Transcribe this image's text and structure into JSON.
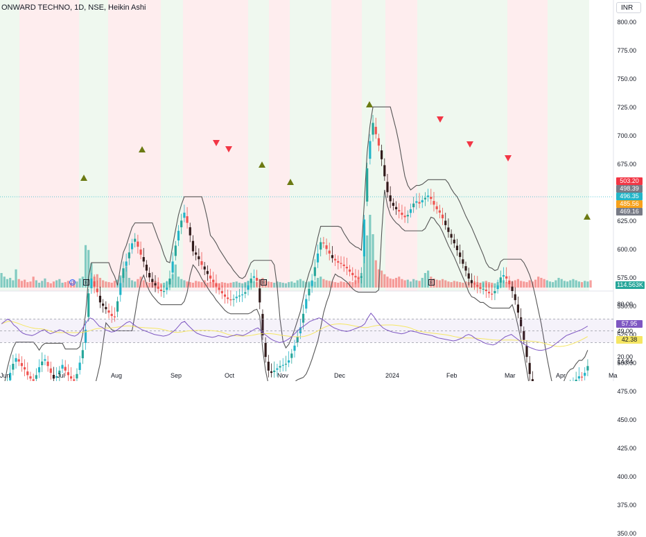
{
  "header": {
    "title": "ONWARD TECHNO, 1D, NSE, Heikin Ashi",
    "currency": "INR"
  },
  "axes": {
    "price_ticks": [
      "800.00",
      "775.00",
      "750.00",
      "725.00",
      "700.00",
      "675.00",
      "650.00",
      "625.00",
      "600.00",
      "575.00",
      "550.00",
      "525.00",
      "500.00",
      "475.00",
      "450.00",
      "425.00",
      "400.00",
      "375.00",
      "350.00"
    ],
    "rsi_ticks": [
      "80.00",
      "49.00",
      "20.00",
      "14.84"
    ],
    "month_labels": [
      "Jun",
      "Jul",
      "Aug",
      "Sep",
      "Oct",
      "Nov",
      "Dec",
      "2024",
      "Feb",
      "Mar",
      "Apr",
      "Ma"
    ]
  },
  "badges": {
    "price_a": "503.20",
    "price_b": "498.39",
    "price_c": "496.35",
    "price_d": "485.56",
    "price_e": "469.16",
    "volume": "114.563K",
    "rsi_a": "57.95",
    "rsi_b": "42.38"
  },
  "events": {
    "dividend": "D",
    "earnings": "E"
  },
  "colors": {
    "up": "#26a69a",
    "down": "#ef5350",
    "dark": "#311b1b",
    "cyan": "#22b5c8",
    "band": "#555555",
    "rsi": "#7e57c2",
    "rsi_ma": "#f5e663",
    "green_bg": "rgba(76,175,80,0.09)",
    "red_bg": "rgba(242,54,69,0.09)"
  },
  "chart_data": {
    "type": "candlestick",
    "ylim": [
      345,
      812
    ],
    "closes": [
      455,
      468,
      482,
      492,
      500,
      505,
      502,
      498,
      495,
      490,
      487,
      485,
      490,
      497,
      502,
      504,
      498,
      492,
      487,
      489,
      494,
      499,
      494,
      490,
      487,
      485,
      491,
      501,
      512,
      530,
      562,
      575,
      568,
      563,
      554,
      551,
      548,
      545,
      542,
      541,
      555,
      571,
      584,
      590,
      598,
      606,
      610,
      603,
      596,
      590,
      582,
      576,
      572,
      569,
      566,
      564,
      564,
      567,
      575,
      590,
      604,
      617,
      626,
      633,
      624,
      613,
      599,
      596,
      592,
      587,
      583,
      579,
      575,
      572,
      568,
      565,
      562,
      559,
      557,
      556,
      557,
      559,
      560,
      561,
      563,
      569,
      575,
      577,
      573,
      554,
      525,
      506,
      494,
      492,
      494,
      496,
      498,
      499,
      500,
      503,
      509,
      516,
      524,
      532,
      544,
      557,
      566,
      573,
      585,
      597,
      607,
      606,
      601,
      597,
      593,
      591,
      589,
      588,
      586,
      584,
      581,
      578,
      576,
      575,
      577,
      627,
      672,
      696,
      712,
      702,
      692,
      680,
      665,
      651,
      643,
      639,
      636,
      634,
      631,
      629,
      631,
      636,
      641,
      643,
      641,
      644,
      646,
      648,
      645,
      640,
      636,
      633,
      628,
      622,
      616,
      611,
      606,
      600,
      594,
      588,
      582,
      575,
      571,
      570,
      568,
      566,
      566,
      564,
      562,
      561,
      564,
      569,
      576,
      578,
      575,
      570,
      564,
      556,
      545,
      533,
      521,
      506,
      491,
      478,
      466,
      454,
      447,
      445,
      446,
      448,
      449,
      450,
      457,
      465,
      472,
      478,
      481,
      482,
      486,
      489,
      488,
      492,
      498
    ],
    "volume": [
      24,
      18,
      14,
      16,
      12,
      30,
      14,
      11,
      13,
      9,
      10,
      18,
      12,
      8,
      11,
      15,
      9,
      7,
      10,
      12,
      14,
      8,
      9,
      11,
      8,
      12,
      10,
      15,
      18,
      70,
      62,
      40,
      18,
      22,
      16,
      12,
      10,
      9,
      8,
      11,
      13,
      20,
      24,
      35,
      16,
      12,
      10,
      14,
      18,
      12,
      9,
      8,
      10,
      11,
      9,
      7,
      8,
      10,
      12,
      22,
      38,
      18,
      14,
      12,
      10,
      9,
      8,
      11,
      10,
      9,
      12,
      8,
      9,
      10,
      8,
      7,
      9,
      8,
      7,
      8,
      9,
      10,
      8,
      7,
      9,
      11,
      12,
      10,
      9,
      14,
      16,
      12,
      10,
      9,
      8,
      10,
      9,
      8,
      7,
      9,
      10,
      8,
      12,
      14,
      11,
      9,
      10,
      12,
      10,
      16,
      18,
      14,
      12,
      11,
      10,
      9,
      8,
      10,
      9,
      8,
      10,
      9,
      12,
      18,
      24,
      100,
      86,
      120,
      88,
      45,
      30,
      28,
      22,
      18,
      15,
      14,
      16,
      18,
      14,
      12,
      13,
      10,
      14,
      12,
      11,
      16,
      24,
      28,
      18,
      15,
      13,
      12,
      14,
      12,
      10,
      9,
      11,
      10,
      9,
      8,
      10,
      9,
      12,
      10,
      9,
      8,
      10,
      11,
      9,
      8,
      7,
      9,
      10,
      12,
      9,
      8,
      10,
      12,
      14,
      11,
      10,
      9,
      12,
      10,
      13,
      18,
      16,
      14,
      12,
      10,
      9,
      12,
      16,
      14,
      11,
      10,
      12,
      14,
      12,
      10,
      9,
      11,
      10,
      12
    ],
    "rsi": [
      62,
      66,
      70,
      67,
      60,
      56,
      50,
      46,
      44,
      43,
      42,
      44,
      47,
      50,
      52,
      48,
      45,
      47,
      49,
      52,
      50,
      47,
      44,
      42,
      41,
      44,
      50,
      58,
      66,
      72,
      70,
      64,
      58,
      56,
      52,
      50,
      48,
      49,
      52,
      56,
      60,
      64,
      66,
      62,
      58,
      55,
      52,
      50,
      48,
      46,
      44,
      43,
      42,
      41,
      42,
      44,
      48,
      52,
      58,
      64,
      66,
      60,
      55,
      50,
      46,
      44,
      42,
      41,
      40,
      39,
      40,
      42,
      41,
      40,
      39,
      41,
      42,
      44,
      43,
      42,
      44,
      47,
      50,
      53,
      55,
      50,
      45,
      41,
      37,
      34,
      32,
      30,
      31,
      33,
      36,
      40,
      45,
      50,
      55,
      58,
      62,
      66,
      68,
      70,
      72,
      70,
      66,
      62,
      58,
      55,
      53,
      51,
      50,
      49,
      50,
      52,
      54,
      56,
      58,
      62,
      72,
      80,
      74,
      66,
      60,
      55,
      52,
      50,
      48,
      47,
      46,
      45,
      46,
      48,
      50,
      49,
      48,
      46,
      45,
      44,
      43,
      42,
      40,
      38,
      37,
      36,
      35,
      34,
      33,
      34,
      36,
      38,
      42,
      44,
      42,
      38,
      35,
      33,
      30,
      28,
      27,
      26,
      28,
      32,
      36,
      40,
      42,
      44,
      40,
      36,
      32,
      28,
      25,
      22,
      20,
      18,
      17,
      17,
      18,
      20,
      22,
      26,
      30,
      34,
      38,
      42,
      44,
      46,
      48,
      50,
      52,
      55,
      58
    ]
  }
}
